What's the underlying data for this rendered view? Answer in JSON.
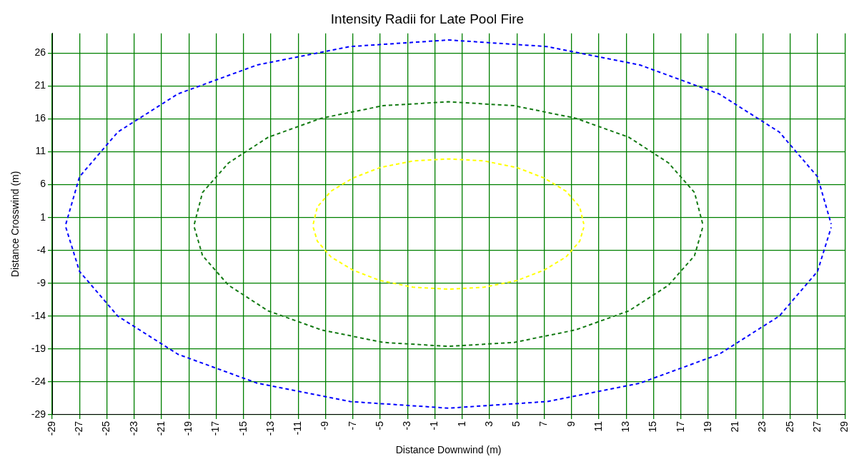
{
  "chart_data": {
    "type": "line",
    "title": "Intensity Radii for Late Pool Fire",
    "xlabel": "Distance Downwind (m)",
    "ylabel": "Distance Crosswind (m)",
    "xlim": [
      -29,
      29
    ],
    "xticks": [
      -29,
      -27,
      -25,
      -23,
      -21,
      -19,
      -17,
      -15,
      -13,
      -11,
      -9,
      -7,
      -5,
      -3,
      -1,
      1,
      3,
      5,
      7,
      9,
      11,
      13,
      15,
      17,
      19,
      21,
      23,
      25,
      27,
      29
    ],
    "ylim": [
      -29,
      29
    ],
    "yticks": [
      -29,
      -24,
      -19,
      -14,
      -9,
      -4,
      1,
      6,
      11,
      16,
      21,
      26
    ],
    "grid": true,
    "marker": "none",
    "line_style": "dashed",
    "series": [
      {
        "color": "#0000ff",
        "x": [
          -28,
          -27,
          -24.2,
          -19.8,
          -14,
          -7.2,
          0,
          7.2,
          14,
          19.8,
          24.2,
          27,
          28
        ],
        "values": [
          0,
          7.2,
          14,
          19.8,
          24.2,
          27,
          28,
          27,
          24.2,
          19.8,
          14,
          7.2,
          0
        ]
      },
      {
        "color": "#0000ff",
        "x": [
          -28,
          -27,
          -24.2,
          -19.8,
          -14,
          -7.2,
          0,
          7.2,
          14,
          19.8,
          24.2,
          27,
          28
        ],
        "values": [
          -0.5,
          -7.2,
          -14,
          -19.8,
          -24.2,
          -27,
          -28,
          -27,
          -24.2,
          -19.8,
          -14,
          -7.2,
          -0.5
        ]
      },
      {
        "color": "#137a13",
        "x": [
          -18.6,
          -18,
          -16.1,
          -13.2,
          -9.3,
          -4.8,
          0,
          4.8,
          9.3,
          13.2,
          16.1,
          18,
          18.6
        ],
        "values": [
          0,
          4.8,
          9.3,
          13.2,
          16.1,
          18,
          18.6,
          18,
          16.1,
          13.2,
          9.3,
          4.8,
          0
        ]
      },
      {
        "color": "#137a13",
        "x": [
          -18.6,
          -18,
          -16.1,
          -13.2,
          -9.3,
          -4.8,
          0,
          4.8,
          9.3,
          13.2,
          16.1,
          18,
          18.6
        ],
        "values": [
          -0.5,
          -4.8,
          -9.3,
          -13.2,
          -16.1,
          -18,
          -18.6,
          -18,
          -16.1,
          -13.2,
          -9.3,
          -4.8,
          -0.5
        ]
      },
      {
        "color": "#ffff00",
        "x": [
          -9.9,
          -9.6,
          -8.6,
          -7,
          -5,
          -2.6,
          0,
          2.6,
          5,
          7,
          8.6,
          9.6,
          9.9
        ],
        "values": [
          0,
          2.6,
          5,
          7,
          8.6,
          9.6,
          9.9,
          9.6,
          8.6,
          7,
          5,
          2.6,
          0
        ]
      },
      {
        "color": "#ffff00",
        "x": [
          -9.9,
          -9.6,
          -8.6,
          -7,
          -5,
          -2.6,
          0,
          2.6,
          5,
          7,
          8.6,
          9.6,
          9.9
        ],
        "values": [
          -0.5,
          -2.6,
          -5,
          -7,
          -8.6,
          -9.6,
          -9.9,
          -9.6,
          -8.6,
          -7,
          -5,
          -2.6,
          -0.5
        ]
      }
    ]
  }
}
